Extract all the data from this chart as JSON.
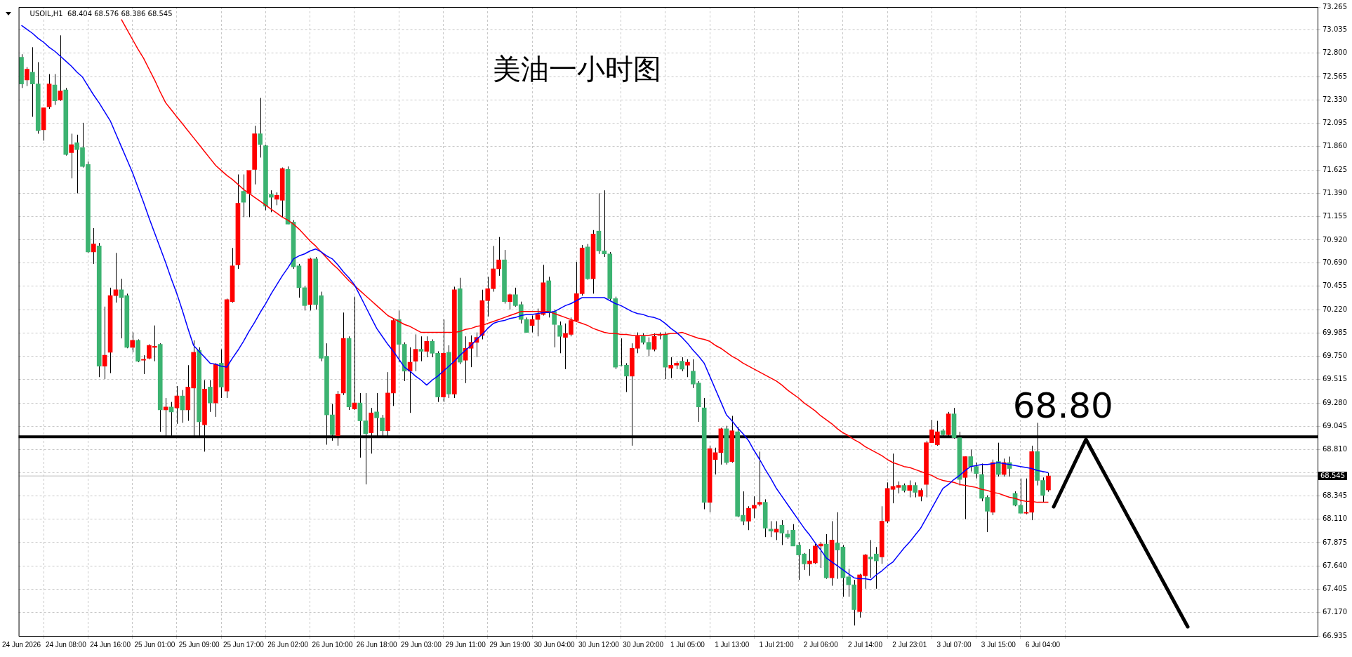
{
  "chart_data": {
    "type": "candlestick",
    "title": "美油一小时图",
    "annotations": [
      "USOIL,H1  68.404 68.576 68.386 68.545",
      "68.80"
    ],
    "categories": [
      "24 Jun 2026",
      null,
      null,
      null,
      null,
      null,
      null,
      null,
      "24 Jun 08:00",
      null,
      null,
      null,
      null,
      null,
      null,
      null,
      "24 Jun 16:00",
      null,
      null,
      null,
      null,
      null,
      null,
      null,
      "25 Jun 01:00",
      null,
      null,
      null,
      null,
      null,
      null,
      null,
      "25 Jun 09:00",
      null,
      null,
      null,
      null,
      null,
      null,
      null,
      "25 Jun 17:00",
      null,
      null,
      null,
      null,
      null,
      null,
      null,
      "26 Jun 02:00",
      null,
      null,
      null,
      null,
      null,
      null,
      null,
      "26 Jun 10:00",
      null,
      null,
      null,
      null,
      null,
      null,
      null,
      "26 Jun 18:00",
      null,
      null,
      null,
      null,
      null,
      null,
      null,
      "29 Jun 03:00",
      null,
      null,
      null,
      null,
      null,
      null,
      null,
      "29 Jun 11:00",
      null,
      null,
      null,
      null,
      null,
      null,
      null,
      "29 Jun 19:00",
      null,
      null,
      null,
      null,
      null,
      null,
      null,
      "30 Jun 04:00",
      null,
      null,
      null,
      null,
      null,
      null,
      null,
      "30 Jun 12:00",
      null,
      null,
      null,
      null,
      null,
      null,
      null,
      "30 Jun 20:00",
      null,
      null,
      null,
      null,
      null,
      null,
      null,
      "1 Jul 05:00",
      null,
      null,
      null,
      null,
      null,
      null,
      null,
      "1 Jul 13:00",
      null,
      null,
      null,
      null,
      null,
      null,
      null,
      "1 Jul 21:00",
      null,
      null,
      null,
      null,
      null,
      null,
      null,
      "2 Jul 06:00",
      null,
      null,
      null,
      null,
      null,
      null,
      null,
      "2 Jul 14:00",
      null,
      null,
      null,
      null,
      null,
      null,
      null,
      "2 Jul 23:01",
      null,
      null,
      null,
      null,
      null,
      null,
      null,
      "3 Jul 07:00",
      null,
      null,
      null,
      null,
      null,
      null,
      null,
      "3 Jul 15:00",
      null,
      null,
      null,
      null,
      null,
      null,
      null,
      "6 Jul 04:00",
      null
    ],
    "ohlc": [
      [
        72.76,
        72.79,
        72.45,
        72.49
      ],
      [
        72.53,
        72.66,
        72.47,
        72.64
      ],
      [
        72.61,
        72.86,
        72.16,
        72.49
      ],
      [
        72.49,
        72.71,
        71.99,
        72.02
      ],
      [
        72.03,
        72.25,
        71.92,
        72.25
      ],
      [
        72.26,
        72.59,
        72.24,
        72.49
      ],
      [
        72.48,
        72.59,
        72.28,
        72.32
      ],
      [
        72.33,
        72.98,
        72.32,
        72.42
      ],
      [
        72.43,
        72.45,
        71.77,
        71.78
      ],
      [
        71.8,
        71.99,
        71.54,
        71.88
      ],
      [
        71.9,
        71.98,
        71.39,
        71.83
      ],
      [
        71.85,
        72.1,
        71.65,
        71.66
      ],
      [
        71.68,
        71.71,
        70.79,
        70.8
      ],
      [
        70.8,
        71.04,
        70.68,
        70.88
      ],
      [
        70.86,
        70.89,
        69.54,
        69.65
      ],
      [
        69.65,
        70.25,
        69.52,
        69.76
      ],
      [
        69.79,
        70.44,
        69.58,
        70.36
      ],
      [
        70.36,
        70.79,
        70.29,
        70.42
      ],
      [
        70.42,
        70.53,
        69.93,
        70.34
      ],
      [
        70.36,
        70.38,
        69.83,
        69.84
      ],
      [
        69.84,
        69.99,
        69.79,
        69.91
      ],
      [
        69.91,
        69.92,
        69.69,
        69.7
      ],
      [
        69.71,
        69.76,
        69.57,
        69.72
      ],
      [
        69.73,
        69.87,
        69.72,
        69.86
      ],
      [
        69.84,
        70.06,
        69.7,
        69.85
      ],
      [
        69.87,
        69.88,
        68.99,
        69.21
      ],
      [
        69.21,
        69.33,
        68.94,
        69.24
      ],
      [
        69.24,
        69.29,
        68.94,
        69.19
      ],
      [
        69.23,
        69.45,
        69.07,
        69.35
      ],
      [
        69.35,
        69.41,
        69.08,
        69.21
      ],
      [
        69.21,
        69.66,
        69.1,
        69.44
      ],
      [
        69.43,
        69.91,
        68.94,
        69.79
      ],
      [
        69.81,
        69.84,
        68.94,
        69.09
      ],
      [
        69.06,
        69.51,
        68.79,
        69.42
      ],
      [
        69.44,
        69.51,
        69.19,
        69.28
      ],
      [
        69.28,
        69.68,
        69.14,
        69.67
      ],
      [
        69.68,
        69.82,
        69.33,
        69.44
      ],
      [
        69.4,
        70.33,
        69.33,
        70.32
      ],
      [
        70.3,
        70.84,
        70.29,
        70.66
      ],
      [
        70.67,
        71.58,
        70.63,
        71.29
      ],
      [
        71.41,
        71.58,
        71.15,
        71.3
      ],
      [
        71.39,
        71.62,
        71.15,
        71.62
      ],
      [
        71.63,
        72.07,
        71.48,
        71.99
      ],
      [
        71.99,
        72.35,
        71.75,
        71.88
      ],
      [
        71.87,
        71.88,
        71.22,
        71.26
      ],
      [
        71.38,
        71.42,
        71.2,
        71.35
      ],
      [
        71.33,
        71.4,
        71.27,
        71.37
      ],
      [
        71.32,
        71.65,
        71.15,
        71.64
      ],
      [
        71.63,
        71.66,
        71.08,
        71.08
      ],
      [
        71.1,
        71.12,
        70.63,
        70.65
      ],
      [
        70.66,
        70.68,
        70.34,
        70.44
      ],
      [
        70.44,
        70.46,
        70.21,
        70.26
      ],
      [
        70.27,
        70.74,
        70.21,
        70.73
      ],
      [
        70.73,
        70.75,
        70.22,
        70.27
      ],
      [
        70.36,
        70.4,
        69.7,
        69.73
      ],
      [
        69.75,
        69.88,
        68.86,
        69.16
      ],
      [
        69.16,
        69.27,
        68.9,
        68.96
      ],
      [
        68.95,
        69.4,
        68.85,
        69.37
      ],
      [
        69.38,
        70.19,
        69.36,
        69.93
      ],
      [
        69.93,
        69.95,
        69.21,
        69.24
      ],
      [
        69.22,
        70.35,
        69.21,
        69.28
      ],
      [
        69.28,
        69.38,
        68.73,
        69.1
      ],
      [
        69.1,
        69.38,
        68.46,
        68.97
      ],
      [
        68.98,
        69.23,
        68.77,
        69.18
      ],
      [
        69.19,
        69.38,
        68.94,
        69.13
      ],
      [
        69.13,
        69.16,
        68.94,
        69.0
      ],
      [
        69.0,
        69.59,
        68.94,
        69.38
      ],
      [
        69.38,
        70.12,
        69.25,
        70.11
      ],
      [
        70.12,
        70.21,
        69.69,
        69.87
      ],
      [
        69.87,
        69.89,
        69.5,
        69.6
      ],
      [
        69.6,
        69.84,
        69.18,
        69.69
      ],
      [
        69.7,
        69.97,
        69.6,
        69.82
      ],
      [
        69.82,
        69.95,
        69.7,
        69.8
      ],
      [
        69.8,
        69.95,
        69.74,
        69.9
      ],
      [
        69.9,
        69.92,
        69.74,
        69.78
      ],
      [
        69.78,
        69.8,
        69.29,
        69.34
      ],
      [
        69.34,
        70.12,
        69.29,
        69.78
      ],
      [
        69.79,
        69.86,
        69.33,
        69.37
      ],
      [
        69.37,
        70.45,
        69.33,
        70.42
      ],
      [
        70.43,
        70.54,
        69.67,
        69.69
      ],
      [
        69.71,
        69.95,
        69.48,
        69.83
      ],
      [
        69.83,
        69.96,
        69.64,
        69.89
      ],
      [
        69.89,
        69.99,
        69.74,
        69.94
      ],
      [
        69.96,
        70.42,
        69.92,
        70.31
      ],
      [
        70.31,
        70.55,
        70.15,
        70.43
      ],
      [
        70.43,
        70.86,
        70.4,
        70.63
      ],
      [
        70.63,
        70.95,
        70.56,
        70.72
      ],
      [
        70.72,
        70.82,
        70.28,
        70.3
      ],
      [
        70.3,
        70.38,
        70.22,
        70.37
      ],
      [
        70.37,
        70.44,
        70.25,
        70.26
      ],
      [
        70.27,
        70.3,
        70.08,
        70.12
      ],
      [
        70.12,
        70.14,
        69.99,
        69.99
      ],
      [
        70.06,
        70.16,
        69.99,
        70.12
      ],
      [
        70.12,
        70.23,
        69.95,
        70.17
      ],
      [
        70.17,
        70.67,
        70.16,
        70.49
      ],
      [
        70.51,
        70.55,
        70.14,
        70.19
      ],
      [
        70.2,
        70.22,
        69.84,
        70.07
      ],
      [
        70.06,
        70.1,
        69.78,
        69.95
      ],
      [
        69.94,
        70.08,
        69.62,
        69.98
      ],
      [
        69.97,
        70.14,
        69.95,
        70.11
      ],
      [
        70.11,
        70.7,
        70.1,
        70.38
      ],
      [
        70.38,
        70.87,
        70.36,
        70.84
      ],
      [
        70.85,
        70.88,
        70.52,
        70.53
      ],
      [
        70.53,
        71.02,
        70.38,
        70.98
      ],
      [
        71.01,
        71.39,
        70.78,
        70.81
      ],
      [
        70.81,
        71.42,
        70.75,
        70.78
      ],
      [
        70.78,
        70.8,
        70.31,
        70.33
      ],
      [
        70.33,
        70.35,
        69.62,
        69.64
      ],
      [
        69.66,
        69.93,
        69.65,
        69.66
      ],
      [
        69.66,
        69.68,
        69.39,
        69.55
      ],
      [
        69.55,
        69.88,
        68.85,
        69.83
      ],
      [
        69.83,
        69.99,
        69.78,
        69.95
      ],
      [
        69.95,
        69.98,
        69.87,
        69.89
      ],
      [
        69.89,
        69.94,
        69.75,
        69.82
      ],
      [
        69.82,
        69.98,
        69.8,
        69.95
      ],
      [
        69.96,
        69.99,
        69.92,
        69.97
      ],
      [
        69.97,
        69.99,
        69.52,
        69.64
      ],
      [
        69.63,
        69.74,
        69.53,
        69.66
      ],
      [
        69.66,
        69.7,
        69.62,
        69.68
      ],
      [
        69.7,
        69.74,
        69.6,
        69.62
      ],
      [
        69.66,
        69.72,
        69.54,
        69.69
      ],
      [
        69.6,
        69.72,
        69.43,
        69.47
      ],
      [
        69.48,
        69.5,
        69.09,
        69.24
      ],
      [
        69.23,
        69.33,
        68.21,
        68.28
      ],
      [
        68.28,
        68.85,
        68.18,
        68.82
      ],
      [
        68.71,
        68.83,
        68.56,
        68.78
      ],
      [
        68.78,
        69.03,
        68.66,
        69.02
      ],
      [
        69.02,
        69.05,
        68.66,
        68.68
      ],
      [
        68.69,
        69.15,
        68.68,
        69.0
      ],
      [
        68.99,
        69.04,
        68.13,
        68.14
      ],
      [
        68.15,
        68.39,
        68.05,
        68.09
      ],
      [
        68.09,
        68.24,
        68.0,
        68.22
      ],
      [
        68.22,
        68.34,
        68.12,
        68.25
      ],
      [
        68.26,
        68.79,
        68.24,
        68.28
      ],
      [
        68.28,
        68.31,
        67.93,
        68.02
      ],
      [
        68.01,
        68.09,
        67.93,
        67.99
      ],
      [
        67.98,
        68.09,
        67.9,
        68.01
      ],
      [
        68.05,
        68.1,
        67.85,
        67.97
      ],
      [
        67.96,
        68.0,
        67.91,
        67.93
      ],
      [
        68.0,
        68.06,
        67.84,
        67.84
      ],
      [
        67.85,
        67.88,
        67.5,
        67.75
      ],
      [
        67.76,
        67.77,
        67.6,
        67.66
      ],
      [
        67.66,
        67.81,
        67.54,
        67.69
      ],
      [
        67.67,
        67.86,
        67.66,
        67.84
      ],
      [
        67.84,
        67.88,
        67.62,
        67.86
      ],
      [
        67.86,
        67.96,
        67.51,
        67.52
      ],
      [
        67.52,
        68.09,
        67.44,
        67.9
      ],
      [
        67.87,
        68.18,
        67.51,
        67.8
      ],
      [
        67.83,
        67.85,
        67.33,
        67.52
      ],
      [
        67.53,
        67.61,
        67.33,
        67.45
      ],
      [
        67.45,
        67.5,
        67.04,
        67.2
      ],
      [
        67.18,
        67.56,
        67.12,
        67.55
      ],
      [
        67.54,
        67.76,
        67.41,
        67.75
      ],
      [
        67.73,
        67.9,
        67.52,
        67.71
      ],
      [
        67.76,
        67.83,
        67.41,
        67.69
      ],
      [
        67.73,
        68.24,
        67.66,
        68.09
      ],
      [
        68.09,
        68.48,
        68.07,
        68.42
      ],
      [
        68.41,
        68.77,
        68.27,
        68.44
      ],
      [
        68.43,
        68.49,
        68.37,
        68.45
      ],
      [
        68.45,
        68.47,
        68.38,
        68.4
      ],
      [
        68.4,
        68.5,
        68.33,
        68.45
      ],
      [
        68.45,
        68.48,
        68.33,
        68.38
      ],
      [
        68.34,
        68.42,
        68.29,
        68.4
      ],
      [
        68.46,
        68.9,
        68.33,
        68.88
      ],
      [
        68.88,
        69.11,
        68.88,
        69.01
      ],
      [
        68.86,
        69.1,
        68.85,
        68.99
      ],
      [
        69.0,
        69.02,
        68.93,
        68.96
      ],
      [
        68.96,
        69.19,
        68.94,
        69.17
      ],
      [
        69.17,
        69.23,
        68.92,
        68.93
      ],
      [
        68.93,
        68.99,
        68.45,
        68.51
      ],
      [
        68.53,
        68.74,
        68.11,
        68.74
      ],
      [
        68.74,
        68.81,
        68.59,
        68.64
      ],
      [
        68.64,
        68.68,
        68.52,
        68.57
      ],
      [
        68.56,
        68.67,
        68.29,
        68.32
      ],
      [
        68.33,
        68.35,
        67.98,
        68.19
      ],
      [
        68.18,
        68.71,
        68.15,
        68.68
      ],
      [
        68.69,
        68.88,
        68.54,
        68.56
      ],
      [
        68.56,
        68.72,
        68.54,
        68.68
      ],
      [
        68.68,
        68.74,
        68.54,
        68.62
      ],
      [
        68.37,
        68.39,
        68.24,
        68.25
      ],
      [
        68.25,
        68.52,
        68.17,
        68.17
      ],
      [
        68.17,
        68.52,
        68.16,
        68.18
      ],
      [
        68.18,
        68.85,
        68.1,
        68.79
      ],
      [
        68.79,
        69.08,
        68.45,
        68.5
      ],
      [
        68.5,
        68.53,
        68.28,
        68.35
      ],
      [
        68.404,
        68.576,
        68.386,
        68.545
      ]
    ],
    "colors": [
      "#3cb371",
      "#ff0000",
      "#3cb371",
      "#3cb371",
      "#ff0000",
      "#ff0000",
      "#3cb371",
      "#ff0000",
      "#3cb371",
      "#ff0000",
      "#3cb371",
      "#3cb371",
      "#3cb371",
      "#ff0000",
      "#3cb371",
      "#ff0000",
      "#ff0000",
      "#ff0000",
      "#3cb371",
      "#3cb371",
      "#ff0000",
      "#3cb371",
      "#ff0000",
      "#ff0000",
      "#ff0000",
      "#3cb371",
      "#ff0000",
      "#3cb371",
      "#ff0000",
      "#3cb371",
      "#ff0000",
      "#ff0000",
      "#3cb371",
      "#ff0000",
      "#3cb371",
      "#ff0000",
      "#3cb371",
      "#ff0000",
      "#ff0000",
      "#ff0000",
      "#3cb371",
      "#ff0000",
      "#ff0000",
      "#3cb371",
      "#3cb371",
      "#3cb371",
      "#ff0000",
      "#ff0000",
      "#3cb371",
      "#3cb371",
      "#3cb371",
      "#3cb371",
      "#ff0000",
      "#3cb371",
      "#3cb371",
      "#3cb371",
      "#3cb371",
      "#ff0000",
      "#ff0000",
      "#3cb371",
      "#ff0000",
      "#3cb371",
      "#3cb371",
      "#ff0000",
      "#3cb371",
      "#3cb371",
      "#ff0000",
      "#ff0000",
      "#3cb371",
      "#3cb371",
      "#ff0000",
      "#ff0000",
      "#3cb371",
      "#ff0000",
      "#3cb371",
      "#3cb371",
      "#ff0000",
      "#3cb371",
      "#ff0000",
      "#3cb371",
      "#ff0000",
      "#ff0000",
      "#ff0000",
      "#ff0000",
      "#ff0000",
      "#ff0000",
      "#ff0000",
      "#3cb371",
      "#ff0000",
      "#3cb371",
      "#3cb371",
      "#3cb371",
      "#ff0000",
      "#ff0000",
      "#ff0000",
      "#3cb371",
      "#3cb371",
      "#3cb371",
      "#ff0000",
      "#ff0000",
      "#ff0000",
      "#ff0000",
      "#3cb371",
      "#ff0000",
      "#3cb371",
      "#3cb371",
      "#3cb371",
      "#3cb371",
      "#3cb371",
      "#3cb371",
      "#ff0000",
      "#ff0000",
      "#3cb371",
      "#3cb371",
      "#ff0000",
      "#ff0000",
      "#3cb371",
      "#ff0000",
      "#ff0000",
      "#3cb371",
      "#ff0000",
      "#3cb371",
      "#3cb371",
      "#3cb371",
      "#ff0000",
      "#ff0000",
      "#ff0000",
      "#3cb371",
      "#ff0000",
      "#3cb371",
      "#3cb371",
      "#ff0000",
      "#ff0000",
      "#ff0000",
      "#3cb371",
      "#3cb371",
      "#ff0000",
      "#3cb371",
      "#3cb371",
      "#3cb371",
      "#3cb371",
      "#3cb371",
      "#ff0000",
      "#ff0000",
      "#ff0000",
      "#3cb371",
      "#ff0000",
      "#3cb371",
      "#3cb371",
      "#3cb371",
      "#3cb371",
      "#ff0000",
      "#ff0000",
      "#3cb371",
      "#3cb371",
      "#ff0000",
      "#ff0000",
      "#ff0000",
      "#ff0000",
      "#3cb371",
      "#ff0000",
      "#3cb371",
      "#ff0000",
      "#ff0000",
      "#ff0000",
      "#ff0000",
      "#3cb371",
      "#ff0000",
      "#3cb371",
      "#3cb371",
      "#ff0000",
      "#3cb371",
      "#3cb371",
      "#3cb371",
      "#3cb371",
      "#ff0000",
      "#3cb371",
      "#ff0000",
      "#3cb371",
      "#3cb371",
      "#3cb371",
      "#ff0000",
      "#ff0000",
      "#3cb371",
      "#3cb371",
      "#ff0000"
    ],
    "series": [
      {
        "type": "line",
        "color": "#0000ff",
        "values": [
          73.08,
          73.04,
          73.0,
          72.95,
          72.91,
          72.86,
          72.82,
          72.77,
          72.72,
          72.67,
          72.61,
          72.56,
          72.47,
          72.38,
          72.3,
          72.21,
          72.12,
          71.99,
          71.86,
          71.73,
          71.6,
          71.45,
          71.3,
          71.14,
          70.99,
          70.84,
          70.69,
          70.53,
          70.38,
          70.21,
          70.03,
          69.86,
          69.8,
          69.74,
          69.68,
          69.67,
          69.65,
          69.64,
          69.73,
          69.81,
          69.9,
          70.0,
          70.09,
          70.19,
          70.28,
          70.38,
          70.47,
          70.56,
          70.64,
          70.73,
          70.76,
          70.78,
          70.81,
          70.83,
          70.8,
          70.76,
          70.73,
          70.67,
          70.6,
          70.54,
          70.47,
          70.36,
          70.25,
          70.14,
          70.03,
          69.95,
          69.87,
          69.8,
          69.72,
          69.64,
          69.6,
          69.55,
          69.51,
          69.46,
          69.51,
          69.55,
          69.6,
          69.65,
          69.7,
          69.76,
          69.81,
          69.86,
          69.92,
          69.97,
          70.03,
          70.08,
          70.1,
          70.11,
          70.13,
          70.14,
          70.16,
          70.17,
          70.17,
          70.18,
          70.19,
          70.19,
          70.2,
          70.23,
          70.26,
          70.28,
          70.31,
          70.34,
          70.34,
          70.34,
          70.34,
          70.34,
          70.31,
          70.28,
          70.26,
          70.23,
          70.2,
          70.18,
          70.17,
          70.15,
          70.14,
          70.12,
          70.08,
          70.03,
          69.99,
          69.94,
          69.88,
          69.81,
          69.75,
          69.68,
          69.55,
          69.42,
          69.29,
          69.16,
          69.1,
          69.03,
          68.97,
          68.9,
          68.8,
          68.71,
          68.61,
          68.52,
          68.42,
          68.34,
          68.26,
          68.18,
          68.1,
          68.02,
          67.95,
          67.87,
          67.8,
          67.72,
          67.68,
          67.64,
          67.6,
          67.56,
          67.52,
          67.51,
          67.51,
          67.5,
          67.55,
          67.59,
          67.64,
          67.68,
          67.75,
          67.82,
          67.88,
          67.95,
          68.02,
          68.12,
          68.22,
          68.32,
          68.42,
          68.46,
          68.51,
          68.55,
          68.6,
          68.64,
          68.65,
          68.66,
          68.66,
          68.67,
          68.68,
          68.67,
          68.66,
          68.65,
          68.64,
          68.63,
          68.62,
          68.6,
          68.59,
          68.58
        ]
      },
      {
        "type": "line",
        "color": "#ff0000",
        "values": [
          null,
          null,
          null,
          null,
          null,
          null,
          null,
          null,
          null,
          null,
          null,
          null,
          null,
          null,
          null,
          null,
          null,
          null,
          73.14,
          73.04,
          72.94,
          72.84,
          72.75,
          72.64,
          72.53,
          72.41,
          72.3,
          72.23,
          72.16,
          72.09,
          72.02,
          71.95,
          71.88,
          71.81,
          71.74,
          71.67,
          71.62,
          71.57,
          71.53,
          71.48,
          71.43,
          71.39,
          71.35,
          71.31,
          71.27,
          71.23,
          71.19,
          71.15,
          71.12,
          71.08,
          71.03,
          70.97,
          70.91,
          70.86,
          70.8,
          70.74,
          70.68,
          70.63,
          70.57,
          70.51,
          70.46,
          70.41,
          70.36,
          70.31,
          70.26,
          70.21,
          70.16,
          70.13,
          70.1,
          70.07,
          70.05,
          70.02,
          69.99,
          69.99,
          69.99,
          69.99,
          69.99,
          69.99,
          69.99,
          70.0,
          70.02,
          70.03,
          70.05,
          70.06,
          70.08,
          70.1,
          70.12,
          70.14,
          70.16,
          70.18,
          70.2,
          70.2,
          70.2,
          70.2,
          70.2,
          70.2,
          70.18,
          70.16,
          70.14,
          70.12,
          70.1,
          70.08,
          70.06,
          70.03,
          70.01,
          69.99,
          69.98,
          69.98,
          69.97,
          69.97,
          69.96,
          69.96,
          69.96,
          69.96,
          69.97,
          69.97,
          69.97,
          69.98,
          69.98,
          69.99,
          69.97,
          69.95,
          69.93,
          69.92,
          69.9,
          69.86,
          69.83,
          69.79,
          69.75,
          69.72,
          69.68,
          69.65,
          69.62,
          69.59,
          69.56,
          69.53,
          69.5,
          69.46,
          69.41,
          69.37,
          69.33,
          69.28,
          69.24,
          69.2,
          69.15,
          69.11,
          69.07,
          69.02,
          68.98,
          68.95,
          68.91,
          68.88,
          68.84,
          68.81,
          68.78,
          68.75,
          68.71,
          68.68,
          68.66,
          68.64,
          68.63,
          68.61,
          68.59,
          68.57,
          68.55,
          68.52,
          68.5,
          68.49,
          68.48,
          68.46,
          68.45,
          68.44,
          68.43,
          68.41,
          68.4,
          68.38,
          68.37,
          68.35,
          68.33,
          68.32,
          68.3,
          68.29,
          68.29,
          68.28,
          68.28,
          68.28
        ]
      }
    ],
    "ylim": [
      66.935,
      73.265
    ],
    "yticks": [
      73.265,
      73.035,
      {
        "value": 72.8,
        "label": "72.800"
      },
      72.565,
      {
        "value": 72.33,
        "label": "72.330"
      },
      72.095,
      {
        "value": 71.86,
        "label": "71.860"
      },
      71.625,
      {
        "value": 71.39,
        "label": "71.390"
      },
      71.155,
      {
        "value": 70.92,
        "label": "70.920"
      },
      {
        "value": 70.69,
        "label": "70.690"
      },
      70.455,
      {
        "value": 70.22,
        "label": "70.220"
      },
      69.985,
      {
        "value": 69.75,
        "label": "69.750"
      },
      69.515,
      {
        "value": 69.28,
        "label": "69.280"
      },
      69.045,
      {
        "value": 68.81,
        "label": "68.810"
      },
      {
        "value": 68.58,
        "label": null
      },
      68.345,
      {
        "value": 68.11,
        "label": "68.110"
      },
      67.875,
      {
        "value": 67.64,
        "label": "67.640"
      },
      67.405,
      {
        "value": 67.17,
        "label": "67.170"
      },
      66.935
    ],
    "ref_lines": [
      {
        "axis": "y",
        "value": 68.94,
        "color": "#000000"
      },
      {
        "axis": "y",
        "value": 68.545,
        "label": "68.545",
        "color": "#c0c0c0"
      }
    ],
    "grid": true,
    "legend": false
  }
}
